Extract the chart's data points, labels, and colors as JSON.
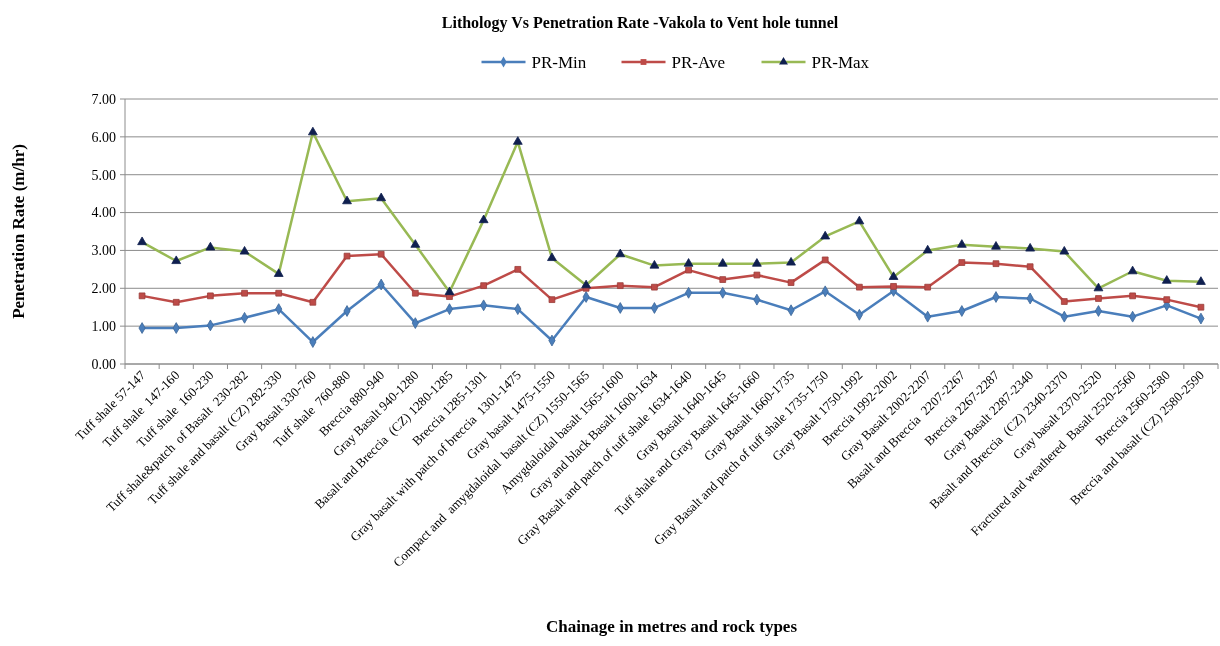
{
  "chart_data": {
    "type": "line",
    "title": "Lithology Vs Penetration Rate -Vakola to Vent hole tunnel",
    "xlabel": "Chainage in metres and rock types",
    "ylabel": "Penetration Rate (m/hr)",
    "categories": [
      "Tuff shale 57-147",
      "Tuff shale  147-160",
      "Tuff shale  160-230",
      "Tuff shale&patch  of Basalt  230-282",
      "Tuff shale and basalt (CZ) 282-330",
      "Gray Basalt 330-760",
      "Tuff shale  760-880",
      "Breccia 880-940",
      "Gray Basalt 940-1280",
      "Basalt and Breccia  (CZ) 1280-1285",
      "Breccia 1285-1301",
      "Gray basalt with patch of breccia  1301-1475",
      "Gray basalt 1475-1550",
      "Compact and  amygdaloidal  basalt (CZ) 1550-1565",
      "Amygdaloidal basalt 1565-1600",
      "Gray and black Basalt 1600-1634",
      "Gray Basalt and patch of tuff shale 1634-1640",
      "Gray Basalt 1640-1645",
      "Tuff shale and Gray Basalt 1645-1660",
      "Gray Basalt 1660-1735",
      "Gray Basalt and patch of tuff shale 1735-1750",
      "Gray Basalt 1750-1992",
      "Breccia 1992-2002",
      "Gray Basalt 2002-2207",
      "Basalt and Breccia  2207-2267",
      "Breccia 2267-2287",
      "Gray Basalt 2287-2340",
      "Basalt and Breccia  (CZ) 2340-2370",
      "Gray basalt 2370-2520",
      "Fractured and weathered  Basalt 2520-2560",
      "Breccia 2560-2580",
      "Breccia and basalt (CZ) 2580-2590"
    ],
    "series": [
      {
        "name": "PR-Min",
        "color": "#4a7ebb",
        "marker": "diamond",
        "values": [
          0.95,
          0.95,
          1.02,
          1.22,
          1.45,
          0.58,
          1.4,
          2.1,
          1.08,
          1.45,
          1.55,
          1.45,
          0.62,
          1.77,
          1.48,
          1.48,
          1.88,
          1.88,
          1.7,
          1.42,
          1.92,
          1.3,
          1.93,
          1.25,
          1.4,
          1.77,
          1.73,
          1.25,
          1.4,
          1.25,
          1.55,
          1.2
        ]
      },
      {
        "name": "PR-Ave",
        "color": "#be4b48",
        "marker": "square",
        "values": [
          1.8,
          1.63,
          1.8,
          1.87,
          1.87,
          1.63,
          2.85,
          2.9,
          1.87,
          1.78,
          2.07,
          2.5,
          1.7,
          2.0,
          2.07,
          2.03,
          2.48,
          2.23,
          2.35,
          2.15,
          2.75,
          2.03,
          2.05,
          2.03,
          2.68,
          2.65,
          2.57,
          1.65,
          1.73,
          1.8,
          1.7,
          1.5
        ]
      },
      {
        "name": "PR-Max",
        "color": "#98b954",
        "marker": "triangle",
        "values": [
          3.22,
          2.72,
          3.08,
          2.97,
          2.38,
          6.12,
          4.3,
          4.38,
          3.15,
          1.9,
          3.8,
          5.87,
          2.8,
          2.08,
          2.9,
          2.6,
          2.65,
          2.65,
          2.65,
          2.68,
          3.37,
          3.77,
          2.3,
          3.0,
          3.15,
          3.1,
          3.05,
          2.97,
          2.0,
          2.45,
          2.2,
          2.17
        ]
      }
    ],
    "ylim": [
      0,
      7
    ],
    "yticks": [
      {
        "value": 0,
        "label": "0.00"
      },
      {
        "value": 1,
        "label": "1.00"
      },
      {
        "value": 2,
        "label": "2.00"
      },
      {
        "value": 3,
        "label": "3.00"
      },
      {
        "value": 4,
        "label": "4.00"
      },
      {
        "value": 5,
        "label": "5.00"
      },
      {
        "value": 6,
        "label": "6.00"
      },
      {
        "value": 7,
        "label": "7.00"
      }
    ],
    "grid": "y",
    "legend": "top",
    "line_style": "solid"
  }
}
